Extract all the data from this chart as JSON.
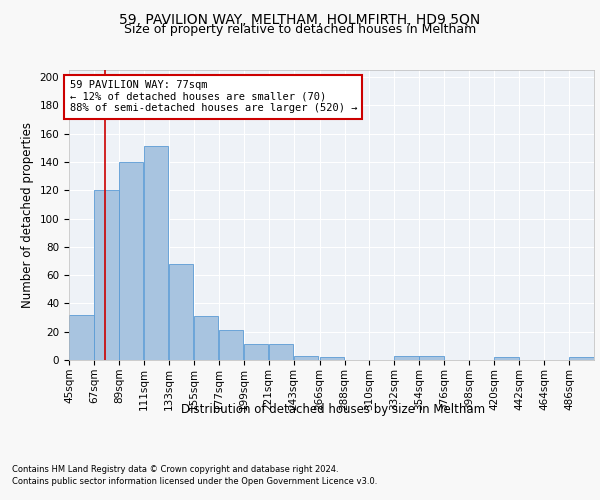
{
  "title1": "59, PAVILION WAY, MELTHAM, HOLMFIRTH, HD9 5QN",
  "title2": "Size of property relative to detached houses in Meltham",
  "xlabel": "Distribution of detached houses by size in Meltham",
  "ylabel": "Number of detached properties",
  "footer1": "Contains HM Land Registry data © Crown copyright and database right 2024.",
  "footer2": "Contains public sector information licensed under the Open Government Licence v3.0.",
  "annotation_line1": "59 PAVILION WAY: 77sqm",
  "annotation_line2": "← 12% of detached houses are smaller (70)",
  "annotation_line3": "88% of semi-detached houses are larger (520) →",
  "bar_color": "#a8c4e0",
  "bar_edge_color": "#5b9bd5",
  "red_line_x": 77,
  "categories": [
    "45sqm",
    "67sqm",
    "89sqm",
    "111sqm",
    "133sqm",
    "155sqm",
    "177sqm",
    "199sqm",
    "221sqm",
    "243sqm",
    "266sqm",
    "288sqm",
    "310sqm",
    "332sqm",
    "354sqm",
    "376sqm",
    "398sqm",
    "420sqm",
    "442sqm",
    "464sqm",
    "486sqm"
  ],
  "bin_edges": [
    45,
    67,
    89,
    111,
    133,
    155,
    177,
    199,
    221,
    243,
    266,
    288,
    310,
    332,
    354,
    376,
    398,
    420,
    442,
    464,
    486
  ],
  "bar_heights": [
    32,
    120,
    140,
    151,
    68,
    31,
    21,
    11,
    11,
    3,
    2,
    0,
    0,
    3,
    3,
    0,
    0,
    2,
    0,
    0,
    2
  ],
  "ylim": [
    0,
    205
  ],
  "yticks": [
    0,
    20,
    40,
    60,
    80,
    100,
    120,
    140,
    160,
    180,
    200
  ],
  "background_color": "#eef2f7",
  "grid_color": "#ffffff",
  "fig_background": "#f8f8f8",
  "title_fontsize": 10,
  "subtitle_fontsize": 9,
  "axis_label_fontsize": 8.5,
  "tick_fontsize": 7.5,
  "footer_fontsize": 6,
  "annotation_fontsize": 7.5,
  "annotation_box_color": "#ffffff",
  "annotation_box_edge": "#cc0000"
}
